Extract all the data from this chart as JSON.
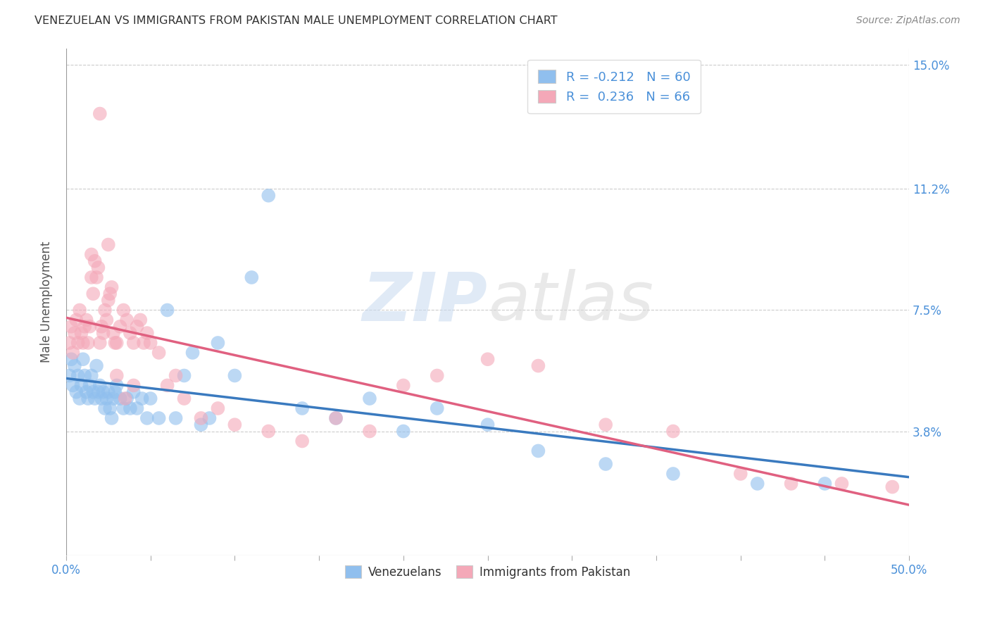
{
  "title": "VENEZUELAN VS IMMIGRANTS FROM PAKISTAN MALE UNEMPLOYMENT CORRELATION CHART",
  "source": "Source: ZipAtlas.com",
  "ylabel": "Male Unemployment",
  "R_venezuelan": -0.212,
  "N_venezuelan": 60,
  "R_pakistan": 0.236,
  "N_pakistan": 66,
  "color_venezuelan": "#90bfee",
  "color_pakistan": "#f4a8b8",
  "line_color_venezuelan": "#3a7abf",
  "line_color_pakistan": "#e06080",
  "legend_venezuelans": "Venezuelans",
  "legend_pakistan": "Immigrants from Pakistan",
  "watermark_zip": "ZIP",
  "watermark_atlas": "atlas",
  "background_color": "#ffffff",
  "xlim": [
    0.0,
    0.5
  ],
  "ylim": [
    0.0,
    0.155
  ],
  "ytick_vals": [
    0.038,
    0.075,
    0.112,
    0.15
  ],
  "ytick_labels": [
    "3.8%",
    "7.5%",
    "11.2%",
    "15.0%"
  ],
  "venezuelan_x": [
    0.002,
    0.003,
    0.004,
    0.005,
    0.006,
    0.007,
    0.008,
    0.009,
    0.01,
    0.011,
    0.012,
    0.013,
    0.014,
    0.015,
    0.016,
    0.017,
    0.018,
    0.019,
    0.02,
    0.021,
    0.022,
    0.023,
    0.024,
    0.025,
    0.026,
    0.027,
    0.028,
    0.029,
    0.03,
    0.032,
    0.034,
    0.036,
    0.038,
    0.04,
    0.042,
    0.045,
    0.048,
    0.05,
    0.055,
    0.06,
    0.065,
    0.07,
    0.075,
    0.08,
    0.085,
    0.09,
    0.1,
    0.11,
    0.12,
    0.14,
    0.16,
    0.18,
    0.2,
    0.22,
    0.25,
    0.28,
    0.32,
    0.36,
    0.41,
    0.45
  ],
  "venezuelan_y": [
    0.055,
    0.06,
    0.052,
    0.058,
    0.05,
    0.055,
    0.048,
    0.052,
    0.06,
    0.055,
    0.05,
    0.048,
    0.052,
    0.055,
    0.05,
    0.048,
    0.058,
    0.05,
    0.052,
    0.048,
    0.05,
    0.045,
    0.048,
    0.05,
    0.045,
    0.042,
    0.048,
    0.05,
    0.052,
    0.048,
    0.045,
    0.048,
    0.045,
    0.05,
    0.045,
    0.048,
    0.042,
    0.048,
    0.042,
    0.075,
    0.042,
    0.055,
    0.062,
    0.04,
    0.042,
    0.065,
    0.055,
    0.085,
    0.11,
    0.045,
    0.042,
    0.048,
    0.038,
    0.045,
    0.04,
    0.032,
    0.028,
    0.025,
    0.022,
    0.022
  ],
  "pakistan_x": [
    0.002,
    0.003,
    0.004,
    0.005,
    0.006,
    0.007,
    0.008,
    0.009,
    0.01,
    0.011,
    0.012,
    0.013,
    0.014,
    0.015,
    0.016,
    0.017,
    0.018,
    0.019,
    0.02,
    0.021,
    0.022,
    0.023,
    0.024,
    0.025,
    0.026,
    0.027,
    0.028,
    0.029,
    0.03,
    0.032,
    0.034,
    0.036,
    0.038,
    0.04,
    0.042,
    0.044,
    0.046,
    0.048,
    0.05,
    0.055,
    0.06,
    0.065,
    0.07,
    0.08,
    0.09,
    0.1,
    0.12,
    0.14,
    0.16,
    0.18,
    0.2,
    0.22,
    0.25,
    0.28,
    0.32,
    0.36,
    0.4,
    0.43,
    0.46,
    0.49,
    0.015,
    0.02,
    0.025,
    0.03,
    0.035,
    0.04
  ],
  "pakistan_y": [
    0.065,
    0.07,
    0.062,
    0.068,
    0.072,
    0.065,
    0.075,
    0.068,
    0.065,
    0.07,
    0.072,
    0.065,
    0.07,
    0.085,
    0.08,
    0.09,
    0.085,
    0.088,
    0.065,
    0.07,
    0.068,
    0.075,
    0.072,
    0.078,
    0.08,
    0.082,
    0.068,
    0.065,
    0.065,
    0.07,
    0.075,
    0.072,
    0.068,
    0.065,
    0.07,
    0.072,
    0.065,
    0.068,
    0.065,
    0.062,
    0.052,
    0.055,
    0.048,
    0.042,
    0.045,
    0.04,
    0.038,
    0.035,
    0.042,
    0.038,
    0.052,
    0.055,
    0.06,
    0.058,
    0.04,
    0.038,
    0.025,
    0.022,
    0.022,
    0.021,
    0.092,
    0.135,
    0.095,
    0.055,
    0.048,
    0.052
  ]
}
